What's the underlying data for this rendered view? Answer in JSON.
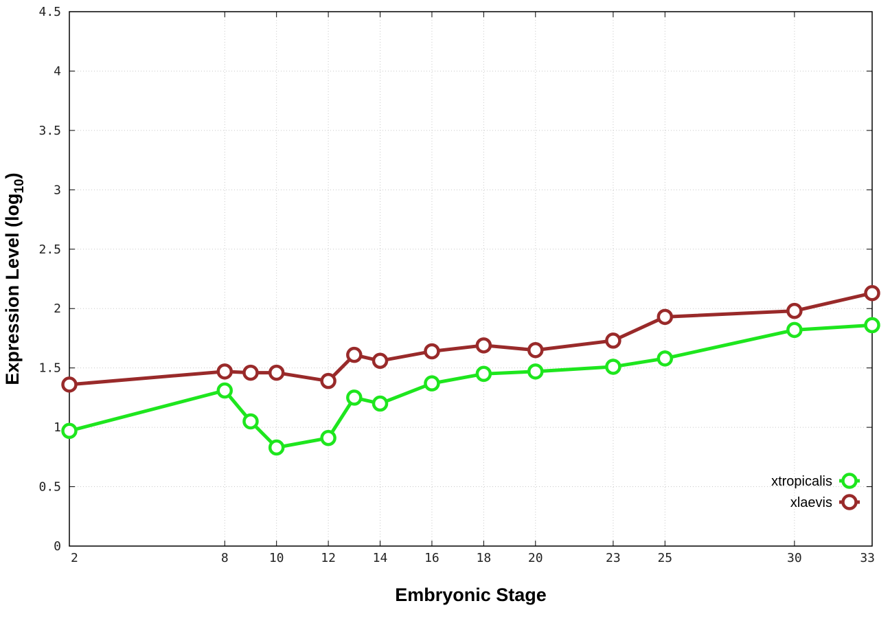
{
  "chart_data": {
    "type": "line",
    "xlabel": "Embryonic Stage",
    "ylabel_main": "Expression Level (log",
    "ylabel_sub": "10",
    "ylabel_close": ")",
    "ylim": [
      0,
      4.5
    ],
    "yticks": [
      "0",
      "0.5",
      "1",
      "1.5",
      "2",
      "2.5",
      "3",
      "3.5",
      "4",
      "4.5"
    ],
    "x": [
      "2",
      "8",
      "9",
      "10",
      "12",
      "13",
      "14",
      "16",
      "18",
      "20",
      "23",
      "25",
      "30",
      "33"
    ],
    "x_tick_labels": [
      "2",
      "8",
      "10",
      "12",
      "14",
      "16",
      "18",
      "20",
      "23",
      "25",
      "30",
      "33"
    ],
    "grid": true,
    "legend_position": "bottom-right",
    "series": [
      {
        "name": "xtropicalis",
        "color": "#1ee61e",
        "values": [
          0.97,
          1.31,
          1.05,
          0.83,
          0.91,
          1.25,
          1.2,
          1.37,
          1.45,
          1.47,
          1.51,
          1.58,
          1.82,
          1.86
        ]
      },
      {
        "name": "xlaevis",
        "color": "#992a2a",
        "values": [
          1.36,
          1.47,
          1.46,
          1.46,
          1.39,
          1.61,
          1.56,
          1.64,
          1.69,
          1.65,
          1.73,
          1.93,
          1.98,
          2.13
        ]
      }
    ]
  }
}
